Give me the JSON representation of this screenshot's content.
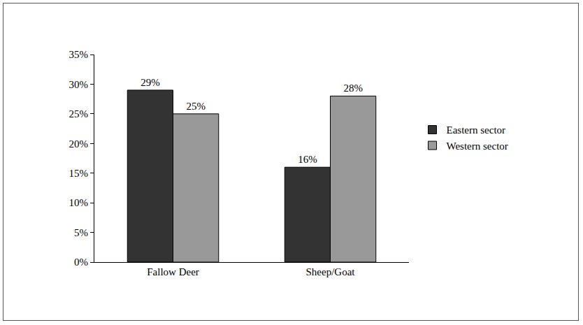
{
  "chart_data": {
    "type": "bar",
    "categories": [
      "Fallow Deer",
      "Sheep/Goat"
    ],
    "series": [
      {
        "name": "Eastern sector",
        "color": "#333333",
        "values": [
          29,
          16
        ],
        "value_labels": [
          "29%",
          "16%"
        ]
      },
      {
        "name": "Western sector",
        "color": "#999999",
        "values": [
          25,
          28
        ],
        "value_labels": [
          "25%",
          "28%"
        ]
      }
    ],
    "ylim": [
      0,
      35
    ],
    "yticks": [
      {
        "value": 0,
        "label": "0%"
      },
      {
        "value": 5,
        "label": "5%"
      },
      {
        "value": 10,
        "label": "10%"
      },
      {
        "value": 15,
        "label": "15%"
      },
      {
        "value": 20,
        "label": "20%"
      },
      {
        "value": 25,
        "label": "25%"
      },
      {
        "value": 30,
        "label": "30%"
      },
      {
        "value": 35,
        "label": "35%"
      }
    ],
    "grid": false,
    "legend": "right",
    "data_labels": true
  }
}
